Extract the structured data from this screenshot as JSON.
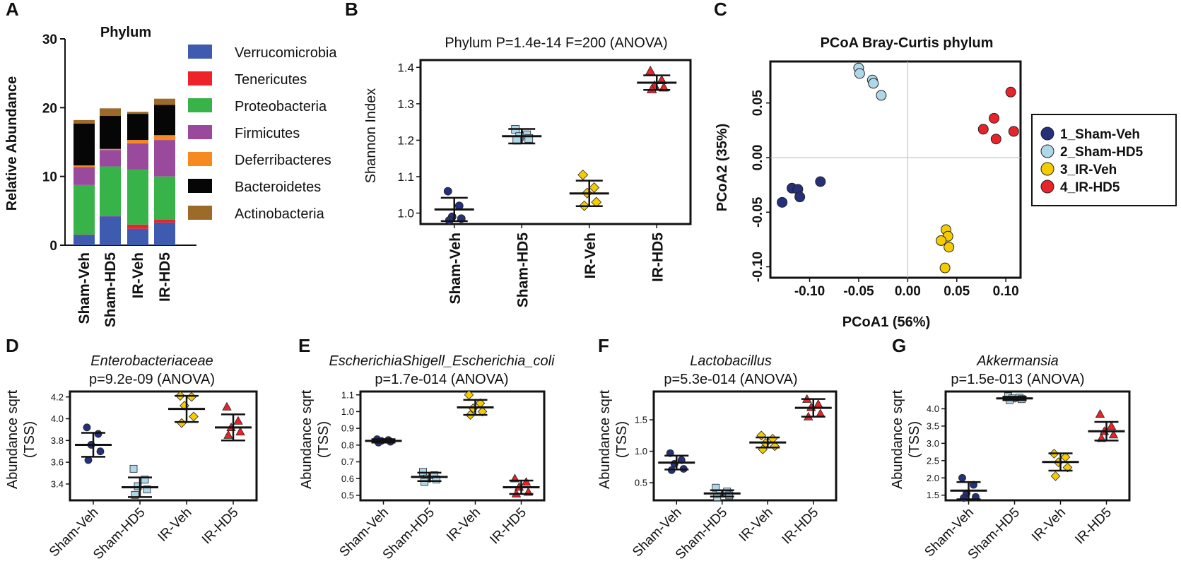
{
  "colors": {
    "sham_veh": "#24307a",
    "sham_hd5": "#aed8ea",
    "ir_veh": "#f5cc00",
    "ir_hd5": "#e8232a",
    "verrucomicrobia": "#3e5bb0",
    "tenericutes": "#ee2229",
    "proteobacteria": "#37b34a",
    "firmicutes": "#9a4a9d",
    "deferribacteres": "#f6891f",
    "bacteroidetes": "#060606",
    "actinobacteria": "#9c6b2a"
  },
  "panel_letters": [
    "A",
    "B",
    "C",
    "D",
    "E",
    "F",
    "G"
  ],
  "chart_data": [
    {
      "id": "A",
      "type": "bar",
      "stacked": true,
      "title": "Phylum",
      "ylabel": "Relative Abundance",
      "xlabel": "",
      "ylim": [
        0,
        30
      ],
      "yticks": [
        "0",
        "10",
        "20",
        "30"
      ],
      "categories": [
        "Sham-Veh",
        "Sham-HD5",
        "IR-Veh",
        "IR-HD5"
      ],
      "series": [
        {
          "name": "Verrucomicrobia",
          "color_key": "verrucomicrobia",
          "values": [
            1.5,
            4.2,
            2.4,
            3.3
          ]
        },
        {
          "name": "Tenericutes",
          "color_key": "tenericutes",
          "values": [
            0.05,
            0.05,
            0.6,
            0.4
          ]
        },
        {
          "name": "Proteobacteria",
          "color_key": "proteobacteria",
          "values": [
            7.2,
            7.2,
            8.0,
            6.3
          ]
        },
        {
          "name": "Firmicutes",
          "color_key": "firmicutes",
          "values": [
            2.6,
            2.4,
            3.8,
            5.3
          ]
        },
        {
          "name": "Deferribacteres",
          "color_key": "deferribacteres",
          "values": [
            0.25,
            0.15,
            0.5,
            0.7
          ]
        },
        {
          "name": "Bacteroidetes",
          "color_key": "bacteroidetes",
          "values": [
            6.1,
            4.8,
            3.8,
            4.4
          ]
        },
        {
          "name": "Actinobacteria",
          "color_key": "actinobacteria",
          "values": [
            0.5,
            1.1,
            0.3,
            0.9
          ]
        }
      ],
      "legend_order": [
        "Verrucomicrobia",
        "Tenericutes",
        "Proteobacteria",
        "Firmicutes",
        "Deferribacteres",
        "Bacteroidetes",
        "Actinobacteria"
      ]
    },
    {
      "id": "B",
      "type": "scatter",
      "title": "Phylum P=1.4e-14 F=200 (ANOVA)",
      "ylabel": "Shannon Index",
      "xlabel": "",
      "ylim": [
        0.97,
        1.42
      ],
      "yticks": [
        1.0,
        1.1,
        1.2,
        1.3,
        1.4
      ],
      "ytick_labels": [
        "1.0",
        "1.1",
        "1.2",
        "1.3",
        "1.4"
      ],
      "categories": [
        "Sham-Veh",
        "Sham-HD5",
        "IR-Veh",
        "IR-HD5"
      ],
      "groups": [
        {
          "name": "Sham-Veh",
          "color_key": "sham_veh",
          "shape": "circle",
          "points": [
            1.06,
            1.02,
            0.99,
            0.985,
            0.98
          ],
          "mean": 1.01,
          "sd": 0.032
        },
        {
          "name": "Sham-HD5",
          "color_key": "sham_hd5",
          "shape": "square",
          "points": [
            1.23,
            1.215,
            1.21,
            1.205,
            1.2
          ],
          "mean": 1.211,
          "sd": 0.02
        },
        {
          "name": "IR-Veh",
          "color_key": "ir_veh",
          "shape": "diamond",
          "points": [
            1.105,
            1.07,
            1.055,
            1.03,
            1.02
          ],
          "mean": 1.054,
          "sd": 0.035
        },
        {
          "name": "IR-HD5",
          "color_key": "ir_hd5",
          "shape": "triangle",
          "points": [
            1.39,
            1.365,
            1.35,
            1.345,
            1.34
          ],
          "mean": 1.358,
          "sd": 0.02
        }
      ]
    },
    {
      "id": "C",
      "type": "scatter",
      "title": "PCoA Bray-Curtis phylum",
      "xlabel": "PCoA1 (56%)",
      "ylabel": "PCoA2 (35%)",
      "xlim": [
        -0.14,
        0.115
      ],
      "ylim": [
        -0.11,
        0.088
      ],
      "xticks": [
        -0.1,
        -0.05,
        0.0,
        0.05,
        0.1
      ],
      "xtick_labels": [
        "-0.10",
        "-0.05",
        "0.00",
        "0.05",
        "0.10"
      ],
      "yticks": [
        -0.1,
        -0.05,
        0.0,
        0.05
      ],
      "ytick_labels": [
        "-0.10",
        "-0.05",
        "0.00",
        "0.05"
      ],
      "legend": [
        "1_Sham-Veh",
        "2_Sham-HD5",
        "3_IR-Veh",
        "4_IR-HD5"
      ],
      "groups": [
        {
          "name": "1_Sham-Veh",
          "color_key": "sham_veh",
          "points": [
            [
              -0.128,
              -0.041
            ],
            [
              -0.118,
              -0.028
            ],
            [
              -0.112,
              -0.029
            ],
            [
              -0.11,
              -0.036
            ],
            [
              -0.089,
              -0.022
            ]
          ]
        },
        {
          "name": "2_Sham-HD5",
          "color_key": "sham_hd5",
          "points": [
            [
              -0.05,
              0.082
            ],
            [
              -0.049,
              0.077
            ],
            [
              -0.036,
              0.071
            ],
            [
              -0.035,
              0.068
            ],
            [
              -0.027,
              0.057
            ]
          ]
        },
        {
          "name": "3_IR-Veh",
          "color_key": "ir_veh",
          "points": [
            [
              0.039,
              -0.066
            ],
            [
              0.041,
              -0.072
            ],
            [
              0.034,
              -0.076
            ],
            [
              0.042,
              -0.082
            ],
            [
              0.038,
              -0.101
            ]
          ]
        },
        {
          "name": "4_IR-HD5",
          "color_key": "ir_hd5",
          "points": [
            [
              0.105,
              0.06
            ],
            [
              0.088,
              0.036
            ],
            [
              0.077,
              0.026
            ],
            [
              0.09,
              0.017
            ],
            [
              0.108,
              0.024
            ]
          ]
        }
      ]
    },
    {
      "id": "D",
      "type": "scatter",
      "title_italic": "Enterobacteriaceae",
      "title": "p=9.2e-09 (ANOVA)",
      "ylabel": "Abundance sqrt (TSS)",
      "ylabel_lines": [
        "Abundance sqrt",
        "(TSS)"
      ],
      "ylim": [
        3.25,
        4.25
      ],
      "yticks": [
        3.4,
        3.6,
        3.8,
        4.0,
        4.2
      ],
      "ytick_labels": [
        "3.4",
        "3.6",
        "3.8",
        "4.0",
        "4.2"
      ],
      "categories": [
        "Sham-Veh",
        "Sham-HD5",
        "IR-Veh",
        "IR-HD5"
      ],
      "groups": [
        {
          "name": "Sham-Veh",
          "color_key": "sham_veh",
          "shape": "circle",
          "points": [
            3.92,
            3.86,
            3.76,
            3.7,
            3.62
          ],
          "mean": 3.76,
          "sd": 0.11
        },
        {
          "name": "Sham-HD5",
          "color_key": "sham_hd5",
          "shape": "square",
          "points": [
            3.54,
            3.44,
            3.38,
            3.35,
            3.3
          ],
          "mean": 3.37,
          "sd": 0.09
        },
        {
          "name": "IR-Veh",
          "color_key": "ir_veh",
          "shape": "diamond",
          "points": [
            4.21,
            4.2,
            4.12,
            4.02,
            3.96
          ],
          "mean": 4.09,
          "sd": 0.12
        },
        {
          "name": "IR-HD5",
          "color_key": "ir_hd5",
          "shape": "triangle",
          "points": [
            4.11,
            3.98,
            3.92,
            3.88,
            3.85
          ],
          "mean": 3.92,
          "sd": 0.12
        }
      ]
    },
    {
      "id": "E",
      "type": "scatter",
      "title_italic": "EscherichiaShigell_Escherichia_coli",
      "title": "p=1.7e-014 (ANOVA)",
      "ylabel": "Abundance sqrt (TSS)",
      "ylabel_lines": [
        "Abundance sqrt",
        "(TSS)"
      ],
      "ylim": [
        0.47,
        1.12
      ],
      "yticks": [
        0.5,
        0.6,
        0.7,
        0.8,
        0.9,
        1.0,
        1.1
      ],
      "ytick_labels": [
        "0.5",
        "0.6",
        "0.7",
        "0.8",
        "0.9",
        "1.0",
        "1.1"
      ],
      "categories": [
        "Sham-Veh",
        "Sham-HD5",
        "IR-Veh",
        "IR-HD5"
      ],
      "groups": [
        {
          "name": "Sham-Veh",
          "color_key": "sham_veh",
          "shape": "circle",
          "points": [
            0.835,
            0.83,
            0.825,
            0.82,
            0.815
          ],
          "mean": 0.825,
          "sd": 0.01
        },
        {
          "name": "Sham-HD5",
          "color_key": "sham_hd5",
          "shape": "square",
          "points": [
            0.64,
            0.62,
            0.6,
            0.595,
            0.58
          ],
          "mean": 0.61,
          "sd": 0.025
        },
        {
          "name": "IR-Veh",
          "color_key": "ir_veh",
          "shape": "diamond",
          "points": [
            1.1,
            1.05,
            1.02,
            1.0,
            0.98
          ],
          "mean": 1.025,
          "sd": 0.045
        },
        {
          "name": "IR-HD5",
          "color_key": "ir_hd5",
          "shape": "triangle",
          "points": [
            0.6,
            0.58,
            0.55,
            0.52,
            0.51
          ],
          "mean": 0.548,
          "sd": 0.04
        }
      ]
    },
    {
      "id": "F",
      "type": "scatter",
      "title_italic": "Lactobacillus",
      "title": "p=5.3e-014 (ANOVA)",
      "ylabel": "Abundance sqrt (TSS)",
      "ylabel_lines": [
        "Abundance sqrt",
        "(TSS)"
      ],
      "ylim": [
        0.22,
        1.95
      ],
      "yticks": [
        0.5,
        1.0,
        1.5
      ],
      "ytick_labels": [
        "0.5",
        "1.0",
        "1.5"
      ],
      "categories": [
        "Sham-Veh",
        "Sham-HD5",
        "IR-Veh",
        "IR-HD5"
      ],
      "groups": [
        {
          "name": "Sham-Veh",
          "color_key": "sham_veh",
          "shape": "circle",
          "points": [
            0.97,
            0.86,
            0.8,
            0.72,
            0.7
          ],
          "mean": 0.82,
          "sd": 0.11
        },
        {
          "name": "Sham-HD5",
          "color_key": "sham_hd5",
          "shape": "square",
          "points": [
            0.42,
            0.36,
            0.33,
            0.3,
            0.27
          ],
          "mean": 0.33,
          "sd": 0.05
        },
        {
          "name": "IR-Veh",
          "color_key": "ir_veh",
          "shape": "diamond",
          "points": [
            1.25,
            1.2,
            1.13,
            1.08,
            1.03
          ],
          "mean": 1.14,
          "sd": 0.08
        },
        {
          "name": "IR-HD5",
          "color_key": "ir_hd5",
          "shape": "triangle",
          "points": [
            1.83,
            1.75,
            1.7,
            1.6,
            1.55
          ],
          "mean": 1.69,
          "sd": 0.14
        }
      ]
    },
    {
      "id": "G",
      "type": "scatter",
      "title_italic": "Akkermansia",
      "title": "p=1.5e-013 (ANOVA)",
      "ylabel": "Abundance sqrt (TSS)",
      "ylabel_lines": [
        "Abundance sqrt",
        "(TSS)"
      ],
      "ylim": [
        1.35,
        4.5
      ],
      "yticks": [
        1.5,
        2.0,
        2.5,
        3.0,
        3.5,
        4.0
      ],
      "ytick_labels": [
        "1.5",
        "2.0",
        "2.5",
        "3.0",
        "3.5",
        "4.0"
      ],
      "categories": [
        "Sham-Veh",
        "Sham-HD5",
        "IR-Veh",
        "IR-HD5"
      ],
      "groups": [
        {
          "name": "Sham-Veh",
          "color_key": "sham_veh",
          "shape": "circle",
          "points": [
            2.0,
            1.8,
            1.55,
            1.45,
            1.42
          ],
          "mean": 1.63,
          "sd": 0.25
        },
        {
          "name": "Sham-HD5",
          "color_key": "sham_hd5",
          "shape": "square",
          "points": [
            4.36,
            4.32,
            4.3,
            4.28,
            4.25
          ],
          "mean": 4.3,
          "sd": 0.05
        },
        {
          "name": "IR-Veh",
          "color_key": "ir_veh",
          "shape": "diamond",
          "points": [
            2.7,
            2.6,
            2.45,
            2.3,
            2.05
          ],
          "mean": 2.46,
          "sd": 0.25
        },
        {
          "name": "IR-HD5",
          "color_key": "ir_hd5",
          "shape": "triangle",
          "points": [
            3.85,
            3.5,
            3.35,
            3.25,
            3.15
          ],
          "mean": 3.35,
          "sd": 0.27
        }
      ]
    }
  ]
}
